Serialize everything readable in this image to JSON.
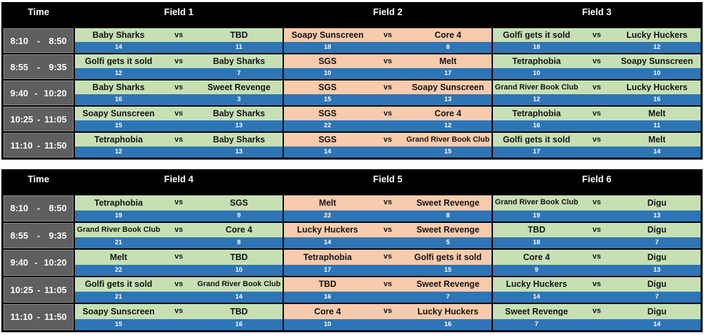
{
  "colors": {
    "frame": "#000000",
    "header_text": "#ffffff",
    "time_bg": "#5f5f5f",
    "time_border": "#8a8a8a",
    "time_text": "#ffffff",
    "field_green": "#c6e0b4",
    "field_peach": "#f8cbad",
    "score_band_blue": "#2e75b6",
    "score_text": "#ffffff"
  },
  "tables": [
    {
      "header": {
        "time_label": "Time",
        "fields": [
          {
            "label": "Field 1",
            "tone": "green"
          },
          {
            "label": "Field 2",
            "tone": "peach"
          },
          {
            "label": "Field 3",
            "tone": "green"
          }
        ]
      },
      "rows": [
        {
          "time_start": "8:10",
          "time_dash": "-",
          "time_end": "8:50",
          "games": [
            {
              "home": "Baby Sharks",
              "vs": "vs",
              "away": "TBD",
              "home_score": "14",
              "away_score": "11"
            },
            {
              "home": "Soapy Sunscreen",
              "vs": "vs",
              "away": "Core 4",
              "home_score": "18",
              "away_score": "8"
            },
            {
              "home": "Golfi gets it sold",
              "vs": "vs",
              "away": "Lucky Huckers",
              "home_score": "18",
              "away_score": "12"
            }
          ]
        },
        {
          "time_start": "8:55",
          "time_dash": "-",
          "time_end": "9:35",
          "games": [
            {
              "home": "Golfi gets it sold",
              "vs": "vs",
              "away": "Baby Sharks",
              "home_score": "12",
              "away_score": "7"
            },
            {
              "home": "SGS",
              "vs": "vs",
              "away": "Melt",
              "home_score": "10",
              "away_score": "17"
            },
            {
              "home": "Tetraphobia",
              "vs": "vs",
              "away": "Soapy Sunscreen",
              "home_score": "10",
              "away_score": "10"
            }
          ]
        },
        {
          "time_start": "9:40",
          "time_dash": "-",
          "time_end": "10:20",
          "games": [
            {
              "home": "Baby Sharks",
              "vs": "vs",
              "away": "Sweet Revenge",
              "home_score": "16",
              "away_score": "3"
            },
            {
              "home": "SGS",
              "vs": "vs",
              "away": "Soapy Sunscreen",
              "home_score": "15",
              "away_score": "13"
            },
            {
              "home": "Grand River Book Club",
              "vs": "vs",
              "away": "Lucky Huckers",
              "home_score": "12",
              "away_score": "16"
            }
          ]
        },
        {
          "time_start": "10:25",
          "time_dash": "-",
          "time_end": "11:05",
          "games": [
            {
              "home": "Soapy Sunscreen",
              "vs": "vs",
              "away": "Baby Sharks",
              "home_score": "15",
              "away_score": "13"
            },
            {
              "home": "SGS",
              "vs": "vs",
              "away": "Core 4",
              "home_score": "22",
              "away_score": "12"
            },
            {
              "home": "Tetraphobia",
              "vs": "vs",
              "away": "Melt",
              "home_score": "16",
              "away_score": "11"
            }
          ]
        },
        {
          "time_start": "11:10",
          "time_dash": "-",
          "time_end": "11:50",
          "games": [
            {
              "home": "Tetraphobia",
              "vs": "vs",
              "away": "Baby Sharks",
              "home_score": "12",
              "away_score": "13"
            },
            {
              "home": "SGS",
              "vs": "vs",
              "away": "Grand River Book Club",
              "home_score": "14",
              "away_score": "15"
            },
            {
              "home": "Golfi gets it sold",
              "vs": "vs",
              "away": "Melt",
              "home_score": "17",
              "away_score": "14"
            }
          ]
        }
      ]
    },
    {
      "header": {
        "time_label": "Time",
        "fields": [
          {
            "label": "Field 4",
            "tone": "green"
          },
          {
            "label": "Field 5",
            "tone": "peach"
          },
          {
            "label": "Field 6",
            "tone": "green"
          }
        ]
      },
      "rows": [
        {
          "time_start": "8:10",
          "time_dash": "-",
          "time_end": "8:50",
          "games": [
            {
              "home": "Tetraphobia",
              "vs": "vs",
              "away": "SGS",
              "home_score": "19",
              "away_score": "9"
            },
            {
              "home": "Melt",
              "vs": "vs",
              "away": "Sweet Revenge",
              "home_score": "22",
              "away_score": "8"
            },
            {
              "home": "Grand River Book Club",
              "vs": "vs",
              "away": "Digu",
              "home_score": "19",
              "away_score": "13"
            }
          ]
        },
        {
          "time_start": "8:55",
          "time_dash": "-",
          "time_end": "9:35",
          "games": [
            {
              "home": "Grand River Book Club",
              "vs": "vs",
              "away": "Core 4",
              "home_score": "21",
              "away_score": "8"
            },
            {
              "home": "Lucky Huckers",
              "vs": "vs",
              "away": "Sweet Revenge",
              "home_score": "14",
              "away_score": "5"
            },
            {
              "home": "TBD",
              "vs": "vs",
              "away": "Digu",
              "home_score": "18",
              "away_score": "7"
            }
          ]
        },
        {
          "time_start": "9:40",
          "time_dash": "-",
          "time_end": "10:20",
          "games": [
            {
              "home": "Melt",
              "vs": "vs",
              "away": "TBD",
              "home_score": "22",
              "away_score": "10"
            },
            {
              "home": "Tetraphobia",
              "vs": "vs",
              "away": "Golfi gets it sold",
              "home_score": "17",
              "away_score": "15"
            },
            {
              "home": "Core 4",
              "vs": "vs",
              "away": "Digu",
              "home_score": "9",
              "away_score": "13"
            }
          ]
        },
        {
          "time_start": "10:25",
          "time_dash": "-",
          "time_end": "11:05",
          "games": [
            {
              "home": "Golfi gets it sold",
              "vs": "vs",
              "away": "Grand River Book Club",
              "home_score": "21",
              "away_score": "14"
            },
            {
              "home": "TBD",
              "vs": "vs",
              "away": "Sweet Revenge",
              "home_score": "16",
              "away_score": "7"
            },
            {
              "home": "Lucky Huckers",
              "vs": "vs",
              "away": "Digu",
              "home_score": "14",
              "away_score": "7"
            }
          ]
        },
        {
          "time_start": "11:10",
          "time_dash": "-",
          "time_end": "11:50",
          "games": [
            {
              "home": "Soapy Sunscreen",
              "vs": "vs",
              "away": "TBD",
              "home_score": "15",
              "away_score": "16"
            },
            {
              "home": "Core 4",
              "vs": "vs",
              "away": "Lucky Huckers",
              "home_score": "10",
              "away_score": "16"
            },
            {
              "home": "Sweet Revenge",
              "vs": "vs",
              "away": "Digu",
              "home_score": "7",
              "away_score": "14"
            }
          ]
        }
      ]
    }
  ]
}
